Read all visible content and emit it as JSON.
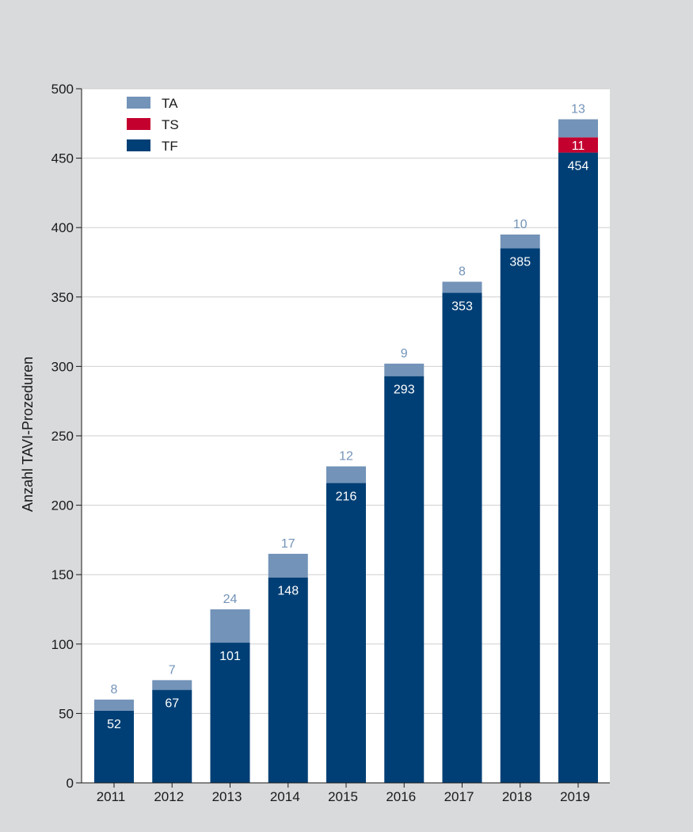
{
  "chart_data": {
    "type": "bar",
    "stacked": true,
    "title": "",
    "xlabel": "",
    "ylabel": "Anzahl TAVI-Prozeduren",
    "ylim": [
      0,
      500
    ],
    "yticks": [
      0,
      50,
      100,
      150,
      200,
      250,
      300,
      350,
      400,
      450,
      500
    ],
    "grid": true,
    "legend_position": "top-left",
    "categories": [
      "2011",
      "2012",
      "2013",
      "2014",
      "2015",
      "2016",
      "2017",
      "2018",
      "2019"
    ],
    "series": [
      {
        "name": "TF",
        "color": "#003f75",
        "values": [
          52,
          67,
          101,
          148,
          216,
          293,
          353,
          385,
          454
        ]
      },
      {
        "name": "TS",
        "color": "#c4002f",
        "values": [
          0,
          0,
          0,
          0,
          0,
          0,
          0,
          0,
          11
        ]
      },
      {
        "name": "TA",
        "color": "#7393b8",
        "values": [
          8,
          7,
          24,
          17,
          12,
          9,
          8,
          10,
          13
        ]
      }
    ],
    "legend_order": [
      "TA",
      "TS",
      "TF"
    ]
  }
}
